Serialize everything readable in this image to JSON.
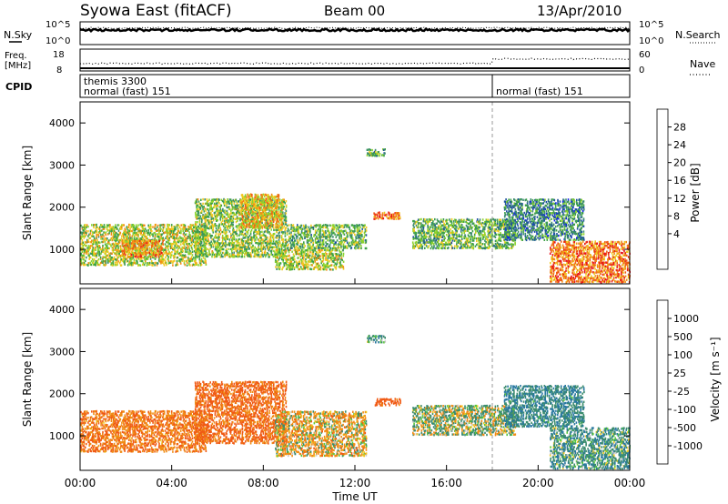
{
  "header": {
    "title": "Syowa East (fitACF)",
    "beam": "Beam 00",
    "date": "13/Apr/2010"
  },
  "nsky_panel": {
    "label": "N.Sky",
    "tick_top": "10^5",
    "tick_bottom": "10^0",
    "right_label": "N.Search",
    "right_tick_top": "10^5",
    "right_tick_bottom": "10^0"
  },
  "freq_panel": {
    "label_top": "Freq.",
    "label_bottom": "[MHz]",
    "tick_top": "18",
    "tick_bottom": "8",
    "right_label": "Nave",
    "right_tick_top": "60",
    "right_tick_bottom": "0"
  },
  "cpid_panel": {
    "label": "CPID",
    "segments": [
      {
        "line1": "themis 3300",
        "line2": "normal (fast) 151"
      },
      {
        "line1": "",
        "line2": "normal (fast) 151"
      }
    ]
  },
  "power_panel": {
    "ylabel": "Slant Range [km]",
    "colorbar_label": "Power [dB]",
    "colorbar_ticks": [
      "28",
      "24",
      "20",
      "16",
      "12",
      "8",
      "4"
    ],
    "colors": [
      "#e8141c",
      "#f05a16",
      "#f08c14",
      "#f0c81e",
      "#8cd22d",
      "#3ca046",
      "#3c8c6e",
      "#1e50a0",
      "#1428e6"
    ]
  },
  "velocity_panel": {
    "ylabel": "Slant Range [km]",
    "colorbar_label": "Velocity [m s⁻¹]",
    "colorbar_ticks": [
      "1000",
      "500",
      "100",
      "25",
      "-25",
      "-100",
      "-500",
      "-1000"
    ],
    "colors": [
      "#2846b4",
      "#2878a0",
      "#3c8c6e",
      "#5ac83c",
      "#c8c8c8",
      "#f0c81e",
      "#f08c14",
      "#f05a14",
      "#e61e1e"
    ]
  },
  "x_axis": {
    "label": "Time UT",
    "ticks": [
      "00:00",
      "04:00",
      "08:00",
      "12:00",
      "16:00",
      "20:00",
      "00:00"
    ]
  },
  "chart_data": [
    {
      "type": "heatmap",
      "title": "Power",
      "xlabel": "Time UT",
      "ylabel": "Slant Range [km]",
      "xlim": [
        "00:00",
        "24:00"
      ],
      "ylim": [
        180,
        4500
      ],
      "yticks": [
        1000,
        2000,
        3000,
        4000
      ],
      "colorbar": {
        "label": "Power [dB]",
        "range": [
          0,
          30
        ],
        "ticks": [
          4,
          8,
          12,
          16,
          20,
          24,
          28
        ]
      },
      "regions": [
        {
          "t_start": 0.0,
          "t_end": 5.5,
          "range_min": 600,
          "range_max": 1600,
          "value": 16
        },
        {
          "t_start": 1.8,
          "t_end": 3.6,
          "range_min": 800,
          "range_max": 1200,
          "value": 22
        },
        {
          "t_start": 5.0,
          "t_end": 9.0,
          "range_min": 800,
          "range_max": 2200,
          "value": 14
        },
        {
          "t_start": 7.0,
          "t_end": 8.8,
          "range_min": 1500,
          "range_max": 2300,
          "value": 20
        },
        {
          "t_start": 8.5,
          "t_end": 11.5,
          "range_min": 500,
          "range_max": 1000,
          "value": 16
        },
        {
          "t_start": 9.0,
          "t_end": 12.5,
          "range_min": 1000,
          "range_max": 1600,
          "value": 12
        },
        {
          "t_start": 12.5,
          "t_end": 13.3,
          "range_min": 3200,
          "range_max": 3400,
          "value": 12
        },
        {
          "t_start": 12.8,
          "t_end": 14.0,
          "range_min": 1700,
          "range_max": 1900,
          "value": 24
        },
        {
          "t_start": 14.5,
          "t_end": 19.0,
          "range_min": 1000,
          "range_max": 1700,
          "value": 12
        },
        {
          "t_start": 18.5,
          "t_end": 22.0,
          "range_min": 1200,
          "range_max": 2200,
          "value": 8
        },
        {
          "t_start": 20.5,
          "t_end": 24.0,
          "range_min": 200,
          "range_max": 1200,
          "value": 24
        }
      ]
    },
    {
      "type": "heatmap",
      "title": "Velocity",
      "xlabel": "Time UT",
      "ylabel": "Slant Range [km]",
      "xlim": [
        "00:00",
        "24:00"
      ],
      "ylim": [
        180,
        4500
      ],
      "yticks": [
        1000,
        2000,
        3000,
        4000
      ],
      "colorbar": {
        "label": "Velocity [m s⁻¹]",
        "range": [
          -1000,
          1000
        ],
        "ticks": [
          1000,
          500,
          100,
          25,
          -25,
          -100,
          -500,
          -1000
        ]
      },
      "regions": [
        {
          "t_start": 0.0,
          "t_end": 5.5,
          "range_min": 600,
          "range_max": 1600,
          "value": -300
        },
        {
          "t_start": 5.0,
          "t_end": 9.0,
          "range_min": 800,
          "range_max": 2300,
          "value": -400
        },
        {
          "t_start": 8.5,
          "t_end": 12.5,
          "range_min": 500,
          "range_max": 1600,
          "value": -100
        },
        {
          "t_start": 12.5,
          "t_end": 13.3,
          "range_min": 3200,
          "range_max": 3400,
          "value": 200
        },
        {
          "t_start": 12.8,
          "t_end": 14.0,
          "range_min": 1700,
          "range_max": 1900,
          "value": -500
        },
        {
          "t_start": 14.5,
          "t_end": 19.0,
          "range_min": 1000,
          "range_max": 1700,
          "value": 50
        },
        {
          "t_start": 18.5,
          "t_end": 22.0,
          "range_min": 1200,
          "range_max": 2200,
          "value": 300
        },
        {
          "t_start": 20.5,
          "t_end": 24.0,
          "range_min": 200,
          "range_max": 1200,
          "value": 200
        }
      ]
    }
  ]
}
